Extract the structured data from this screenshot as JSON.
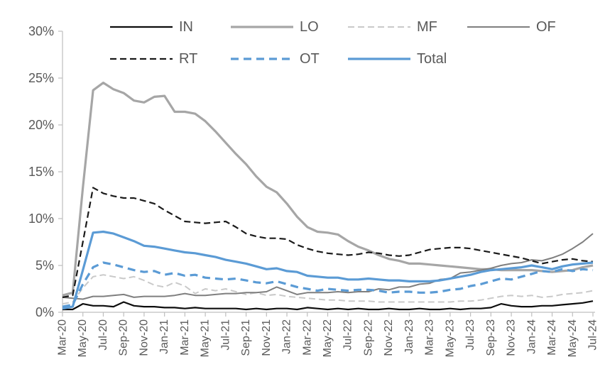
{
  "page": {
    "background": "#ffffff"
  },
  "axes": {
    "text_color": "#595959",
    "line_color": "#bfbfbf",
    "y_tick_labels": [
      "0%",
      "5%",
      "10%",
      "15%",
      "20%",
      "25%",
      "30%"
    ],
    "x_tick_labels": [
      "Mar-20",
      "May-20",
      "Jul-20",
      "Sep-20",
      "Nov-20",
      "Jan-21",
      "Mar-21",
      "May-21",
      "Jul-21",
      "Sep-21",
      "Nov-21",
      "Jan-22",
      "Mar-22",
      "May-22",
      "Jul-22",
      "Sep-22",
      "Nov-22",
      "Jan-23",
      "Mar-23",
      "May-23",
      "Jul-23",
      "Sep-23",
      "Nov-23",
      "Jan-24",
      "Mar-24",
      "May-24",
      "Jul-24"
    ]
  },
  "chart_data": {
    "type": "line",
    "title": "",
    "xlabel": "",
    "ylabel": "",
    "ylim": [
      0,
      30
    ],
    "y_tick_step": 5,
    "grid": false,
    "legend_position": "top",
    "legend_rows": [
      [
        "IN",
        "LO",
        "MF",
        "OF"
      ],
      [
        "RT",
        "OT",
        "Total"
      ]
    ],
    "x_start": "Mar-20",
    "x_end": "Jul-24",
    "x_frequency": "monthly",
    "x_tick_labels": [
      "Mar-20",
      "May-20",
      "Jul-20",
      "Sep-20",
      "Nov-20",
      "Jan-21",
      "Mar-21",
      "May-21",
      "Jul-21",
      "Sep-21",
      "Nov-21",
      "Jan-22",
      "Mar-22",
      "May-22",
      "Jul-22",
      "Sep-22",
      "Nov-22",
      "Jan-23",
      "Mar-23",
      "May-23",
      "Jul-23",
      "Sep-23",
      "Nov-23",
      "Jan-24",
      "Mar-24",
      "May-24",
      "Jul-24"
    ],
    "units": "percent",
    "series": [
      {
        "name": "IN",
        "color": "#0d0d0d",
        "style": "solid",
        "width": 2.2,
        "values": [
          0.3,
          0.3,
          0.9,
          0.7,
          0.7,
          0.6,
          1.1,
          0.7,
          0.6,
          0.6,
          0.5,
          0.5,
          0.4,
          0.5,
          0.4,
          0.4,
          0.4,
          0.4,
          0.3,
          0.4,
          0.3,
          0.4,
          0.4,
          0.3,
          0.5,
          0.4,
          0.3,
          0.4,
          0.3,
          0.4,
          0.3,
          0.3,
          0.4,
          0.3,
          0.3,
          0.4,
          0.3,
          0.3,
          0.4,
          0.3,
          0.4,
          0.4,
          0.5,
          0.9,
          0.7,
          0.6,
          0.6,
          0.7,
          0.7,
          0.8,
          0.9,
          1.0,
          1.2
        ]
      },
      {
        "name": "LO",
        "color": "#a6a6a6",
        "style": "solid",
        "width": 3.2,
        "values": [
          1.8,
          2.1,
          13.3,
          23.7,
          24.5,
          23.8,
          23.4,
          22.6,
          22.4,
          23.0,
          23.1,
          21.4,
          21.4,
          21.2,
          20.4,
          19.3,
          18.1,
          16.9,
          15.8,
          14.5,
          13.4,
          12.8,
          11.6,
          10.2,
          9.1,
          8.6,
          8.5,
          8.3,
          7.6,
          7.0,
          6.6,
          6.1,
          5.7,
          5.5,
          5.2,
          5.2,
          5.1,
          5.0,
          4.9,
          4.8,
          4.7,
          4.6,
          4.6,
          4.5,
          4.5,
          4.5,
          4.5,
          4.4,
          4.3,
          4.4,
          4.5,
          4.8,
          5.0
        ]
      },
      {
        "name": "MF",
        "color": "#c9c9c9",
        "style": "dashed",
        "width": 2.0,
        "values": [
          0.9,
          1.1,
          2.6,
          3.8,
          4.0,
          3.8,
          3.6,
          3.8,
          3.4,
          2.9,
          2.7,
          3.2,
          2.8,
          2.0,
          2.5,
          2.3,
          2.5,
          2.2,
          1.9,
          2.1,
          1.8,
          1.9,
          1.7,
          1.6,
          1.5,
          1.4,
          1.3,
          1.3,
          1.2,
          1.2,
          1.2,
          1.1,
          1.1,
          1.1,
          1.1,
          1.1,
          1.1,
          1.1,
          1.1,
          1.2,
          1.2,
          1.3,
          1.5,
          1.7,
          1.8,
          1.7,
          1.8,
          1.6,
          1.7,
          1.9,
          2.0,
          2.1,
          2.3
        ]
      },
      {
        "name": "OF",
        "color": "#7f7f7f",
        "style": "solid",
        "width": 2.0,
        "values": [
          1.6,
          1.5,
          1.4,
          1.7,
          1.7,
          1.8,
          1.9,
          1.6,
          1.7,
          1.7,
          1.7,
          1.8,
          2.0,
          1.8,
          1.8,
          1.9,
          2.0,
          2.0,
          2.1,
          2.1,
          2.2,
          2.7,
          2.3,
          1.9,
          2.1,
          2.1,
          2.1,
          2.2,
          2.1,
          2.2,
          2.2,
          2.5,
          2.4,
          2.7,
          2.7,
          3.0,
          3.1,
          3.5,
          3.6,
          4.2,
          4.3,
          4.5,
          4.7,
          5.0,
          5.2,
          5.3,
          5.6,
          5.5,
          5.8,
          6.2,
          6.8,
          7.5,
          8.4
        ]
      },
      {
        "name": "RT",
        "color": "#1a1a1a",
        "style": "dashed",
        "width": 2.2,
        "values": [
          1.6,
          1.8,
          7.5,
          13.3,
          12.7,
          12.4,
          12.2,
          12.2,
          11.9,
          11.6,
          10.9,
          10.3,
          9.7,
          9.6,
          9.5,
          9.6,
          9.7,
          9.1,
          8.4,
          8.1,
          7.9,
          7.9,
          7.8,
          7.2,
          6.8,
          6.5,
          6.3,
          6.2,
          6.1,
          6.2,
          6.4,
          6.3,
          6.1,
          6.0,
          6.1,
          6.4,
          6.7,
          6.8,
          6.9,
          6.9,
          6.8,
          6.6,
          6.4,
          6.2,
          6.0,
          5.8,
          5.5,
          5.2,
          5.4,
          5.6,
          5.7,
          5.5,
          5.4
        ]
      },
      {
        "name": "OT",
        "color": "#5b9bd5",
        "style": "dashed",
        "width": 3.2,
        "values": [
          0.6,
          0.8,
          3.0,
          4.8,
          5.3,
          5.1,
          4.8,
          4.5,
          4.3,
          4.4,
          4.0,
          4.2,
          3.9,
          4.0,
          3.7,
          3.6,
          3.5,
          3.6,
          3.4,
          3.2,
          3.1,
          3.3,
          3.0,
          2.7,
          2.5,
          2.3,
          2.5,
          2.4,
          2.3,
          2.4,
          2.4,
          2.3,
          2.1,
          2.2,
          2.2,
          2.1,
          2.1,
          2.2,
          2.4,
          2.5,
          2.8,
          3.0,
          3.3,
          3.6,
          3.5,
          3.8,
          4.1,
          4.4,
          4.3,
          4.6,
          4.4,
          4.6,
          4.5
        ]
      },
      {
        "name": "Total",
        "color": "#5b9bd5",
        "style": "solid",
        "width": 3.2,
        "values": [
          0.4,
          0.6,
          4.5,
          8.5,
          8.6,
          8.4,
          8.0,
          7.6,
          7.1,
          7.0,
          6.8,
          6.6,
          6.4,
          6.3,
          6.1,
          5.9,
          5.6,
          5.4,
          5.2,
          4.9,
          4.6,
          4.7,
          4.4,
          4.3,
          3.9,
          3.8,
          3.7,
          3.7,
          3.5,
          3.5,
          3.6,
          3.5,
          3.4,
          3.4,
          3.3,
          3.3,
          3.3,
          3.4,
          3.6,
          3.8,
          4.0,
          4.3,
          4.5,
          4.6,
          4.7,
          4.8,
          5.0,
          4.8,
          4.6,
          4.9,
          5.1,
          5.2,
          5.3
        ]
      }
    ]
  }
}
